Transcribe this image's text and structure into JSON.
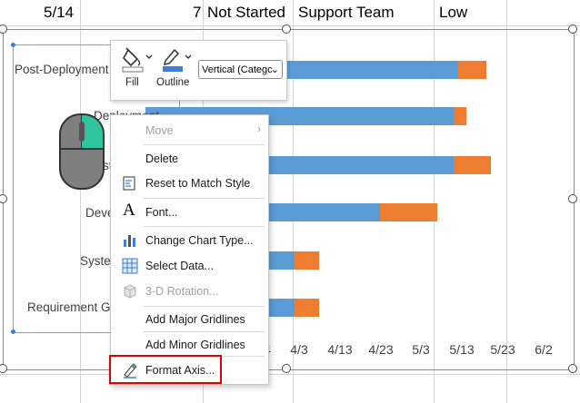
{
  "sheet_row": {
    "date": "5/14",
    "value": "7",
    "status": "Not Started",
    "team": "Support Team",
    "priority": "Low"
  },
  "mini_toolbar": {
    "fill_label": "Fill",
    "outline_label": "Outline",
    "element_select_value": "Vertical (Categc"
  },
  "context_menu": {
    "items": [
      {
        "label": "Move",
        "enabled": false,
        "icon": "none",
        "submenu": true
      },
      {
        "label": "Delete",
        "enabled": true,
        "icon": "none"
      },
      {
        "label": "Reset to Match Style",
        "enabled": true,
        "icon": "reset-style-icon"
      },
      {
        "label": "Font...",
        "enabled": true,
        "icon": "font-icon"
      },
      {
        "label": "Change Chart Type...",
        "enabled": true,
        "icon": "change-chart-type-icon"
      },
      {
        "label": "Select Data...",
        "enabled": true,
        "icon": "select-data-icon"
      },
      {
        "label": "3-D Rotation...",
        "enabled": false,
        "icon": "3d-rotation-icon"
      },
      {
        "label": "Add Major Gridlines",
        "enabled": true,
        "icon": "none"
      },
      {
        "label": "Add Minor Gridlines",
        "enabled": true,
        "icon": "none"
      },
      {
        "label": "Format Axis...",
        "enabled": true,
        "icon": "format-axis-icon"
      }
    ]
  },
  "chart_data": {
    "type": "bar",
    "orientation": "horizontal",
    "stacked": true,
    "categories": [
      "Post-Deployment",
      "Deployment",
      "Testing",
      "Development",
      "System",
      "Requirement Gathering"
    ],
    "category_labels_visible": [
      "Post-Deployment",
      "Deployment",
      "st",
      "Deve",
      "Syste",
      "Requirement G"
    ],
    "x_tick_labels": [
      "4",
      "4/3",
      "4/13",
      "4/23",
      "5/3",
      "5/13",
      "5/23",
      "6/2"
    ],
    "series": [
      {
        "color": "#5b9bd5",
        "end": [
          "5/12",
          "5/11",
          "5/11",
          "4/23",
          "4/2",
          "4/2"
        ]
      },
      {
        "color": "#ed7d31",
        "end": [
          "5/19",
          "5/14",
          "5/20",
          "5/7",
          "4/8",
          "4/8"
        ]
      }
    ],
    "colors": {
      "blue": "#5b9bd5",
      "orange": "#ed7d31"
    },
    "title": "",
    "xlabel": "",
    "ylabel": "",
    "legend": "none"
  },
  "colors": {
    "highlight": "#e00000",
    "toolbar_teal": "#2ec4a0",
    "selected_outline_blue": "#3b7dd8"
  }
}
